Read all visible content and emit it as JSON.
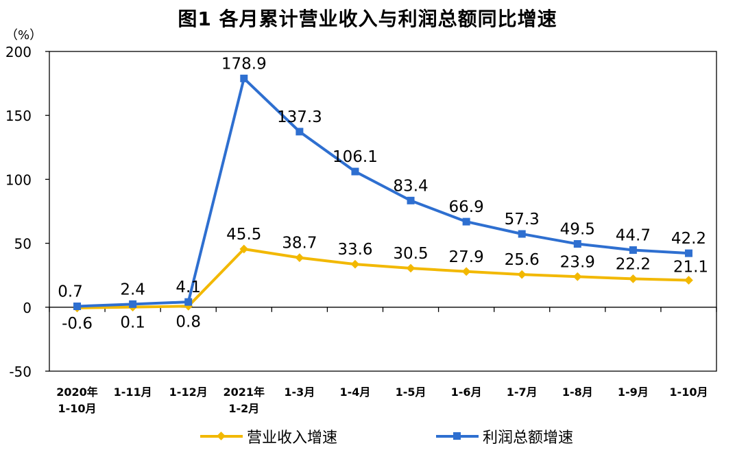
{
  "page_title": "图1  各月累计营业收入与利润总额同比增速",
  "colors": {
    "revenue": "#f2b800",
    "profit": "#2e6fd0",
    "axis": "#000000"
  },
  "chart_data": {
    "type": "line",
    "title": "图1  各月累计营业收入与利润总额同比增速",
    "ylabel": "（%）",
    "xlabel": "",
    "ylim": [
      -50,
      200
    ],
    "yticks": [
      -50,
      0,
      50,
      100,
      150,
      200
    ],
    "grid": false,
    "legend_position": "bottom",
    "categories": [
      [
        "2020年",
        "1-10月"
      ],
      [
        "1-11月"
      ],
      [
        "1-12月"
      ],
      [
        "2021年",
        "1-2月"
      ],
      [
        "1-3月"
      ],
      [
        "1-4月"
      ],
      [
        "1-5月"
      ],
      [
        "1-6月"
      ],
      [
        "1-7月"
      ],
      [
        "1-8月"
      ],
      [
        "1-9月"
      ],
      [
        "1-10月"
      ]
    ],
    "series": [
      {
        "name": "营业收入增速",
        "color": "#f2b800",
        "marker": "diamond",
        "values": [
          -0.6,
          0.1,
          0.8,
          45.5,
          38.7,
          33.6,
          30.5,
          27.9,
          25.6,
          23.9,
          22.2,
          21.1
        ],
        "labels": [
          "-0.6",
          "0.1",
          "0.8",
          "45.5",
          "38.7",
          "33.6",
          "30.5",
          "27.9",
          "25.6",
          "23.9",
          "22.2",
          "21.1"
        ]
      },
      {
        "name": "利润总额增速",
        "color": "#2e6fd0",
        "marker": "square",
        "values": [
          0.7,
          2.4,
          4.1,
          178.9,
          137.3,
          106.1,
          83.4,
          66.9,
          57.3,
          49.5,
          44.7,
          42.2
        ],
        "labels": [
          "0.7",
          "2.4",
          "4.1",
          "178.9",
          "137.3",
          "106.1",
          "83.4",
          "66.9",
          "57.3",
          "49.5",
          "44.7",
          "42.2"
        ]
      }
    ]
  }
}
